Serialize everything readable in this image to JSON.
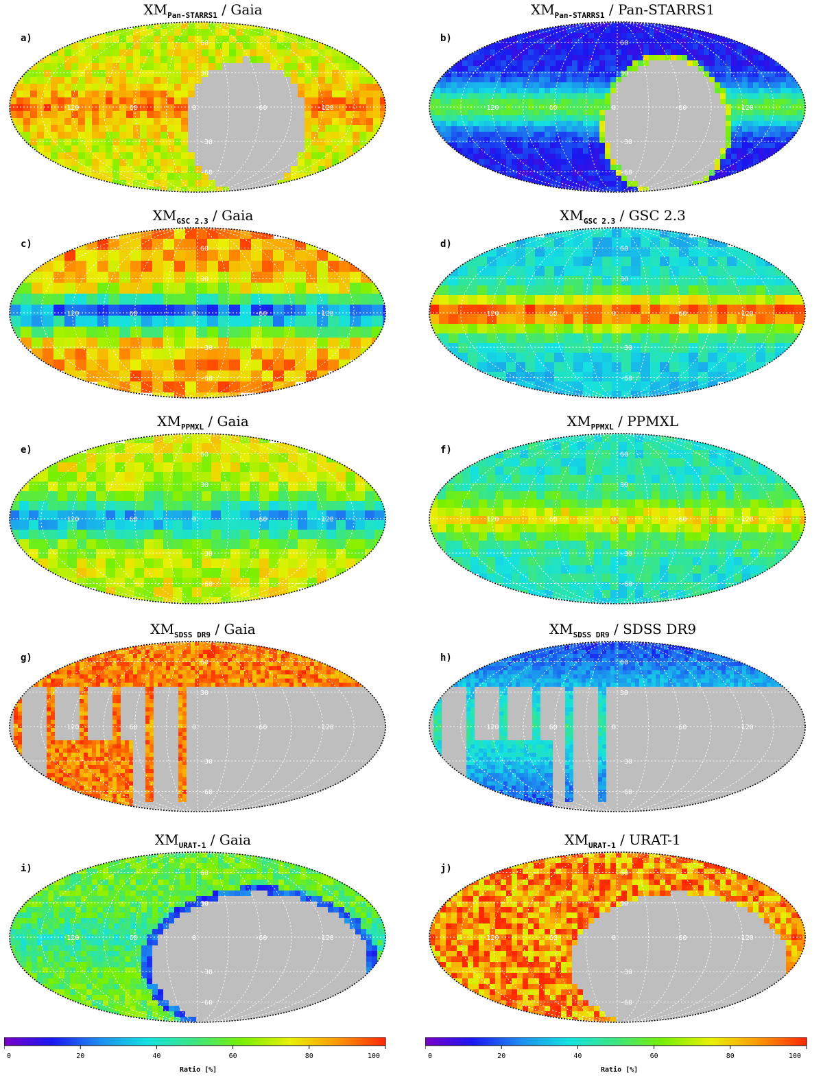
{
  "colors": {
    "mask": "#bebebe",
    "colormap": [
      "#7a00c8",
      "#1a18f0",
      "#1d8cf0",
      "#14e1e1",
      "#3ce67e",
      "#78f000",
      "#e8f000",
      "#ff9600",
      "#ff2800"
    ]
  },
  "graticule": {
    "lon_labels": [
      "120",
      "60",
      "0",
      "-60",
      "-120"
    ],
    "lat_labels": [
      "60",
      "30",
      "0",
      "-30",
      "-60"
    ]
  },
  "panels": [
    {
      "letter": "a)",
      "title_main": "XM",
      "title_sub": "Pan-STARRS1",
      "title_rest": " / Gaia",
      "pattern": "plane",
      "base": 0.72,
      "plane": 0.18,
      "noise": 0.1,
      "block": 10,
      "mask": "southcap",
      "bright_edge": true
    },
    {
      "letter": "b)",
      "title_main": "XM",
      "title_sub": "Pan-STARRS1",
      "title_rest": " / Pan-STARRS1",
      "pattern": "plane",
      "base": 0.12,
      "plane": 0.45,
      "noise": 0.05,
      "block": 8,
      "mask": "southcap",
      "bright_edge": true
    },
    {
      "letter": "c)",
      "title_main": "XM",
      "title_sub": "GSC 2.3",
      "title_rest": " / Gaia",
      "pattern": "plane",
      "base": 0.86,
      "plane": -0.62,
      "noise": 0.12,
      "block": 16,
      "mask": "none"
    },
    {
      "letter": "d)",
      "title_main": "XM",
      "title_sub": "GSC 2.3",
      "title_rest": " / GSC 2.3",
      "pattern": "plane",
      "base": 0.36,
      "plane": 0.58,
      "noise": 0.08,
      "block": 14,
      "mask": "none"
    },
    {
      "letter": "e)",
      "title_main": "XM",
      "title_sub": "PPMXL",
      "title_rest": " / Gaia",
      "pattern": "plane",
      "base": 0.72,
      "plane": -0.42,
      "noise": 0.1,
      "block": 14,
      "mask": "none"
    },
    {
      "letter": "f)",
      "title_main": "XM",
      "title_sub": "PPMXL",
      "title_rest": " / PPMXL",
      "pattern": "plane",
      "base": 0.42,
      "plane": 0.34,
      "noise": 0.09,
      "block": 12,
      "mask": "none"
    },
    {
      "letter": "g)",
      "title_main": "XM",
      "title_sub": "SDSS DR9",
      "title_rest": " / Gaia",
      "pattern": "sdss",
      "base": 0.9,
      "plane": 0.0,
      "noise": 0.1,
      "block": 6,
      "mask": "sdss"
    },
    {
      "letter": "h)",
      "title_main": "XM",
      "title_sub": "SDSS DR9",
      "title_rest": " / SDSS DR9",
      "pattern": "sdss",
      "base": 0.16,
      "plane": 0.3,
      "noise": 0.06,
      "block": 6,
      "mask": "sdss"
    },
    {
      "letter": "i)",
      "title_main": "XM",
      "title_sub": "URAT-1",
      "title_rest": " / Gaia",
      "pattern": "plane",
      "base": 0.58,
      "plane": -0.12,
      "noise": 0.1,
      "block": 8,
      "mask": "urat",
      "dark_edge": true
    },
    {
      "letter": "j)",
      "title_main": "XM",
      "title_sub": "URAT-1",
      "title_rest": " / URAT-1",
      "pattern": "plane",
      "base": 0.88,
      "plane": 0.0,
      "noise": 0.16,
      "block": 8,
      "mask": "urat"
    }
  ],
  "colorbars": [
    {
      "ticks": [
        "0",
        "20",
        "40",
        "60",
        "80",
        "100"
      ],
      "label": "Ratio [%]"
    },
    {
      "ticks": [
        "0",
        "20",
        "40",
        "60",
        "80",
        "100"
      ],
      "label": "Ratio [%]"
    }
  ]
}
